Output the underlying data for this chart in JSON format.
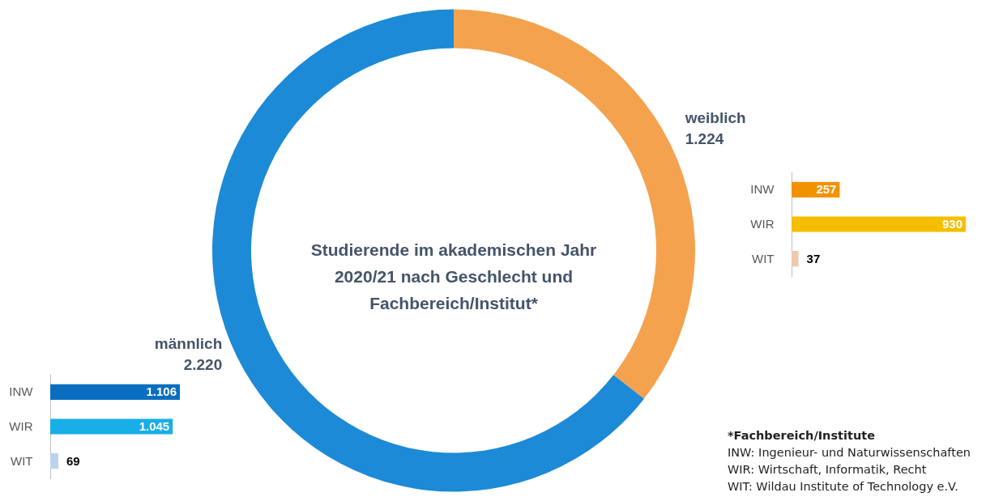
{
  "chart_data": [
    {
      "type": "donut",
      "title": "Studierende im akademischen Jahr 2020/21 nach Geschlecht und Fachbereich/Institut*",
      "categories": [
        "weiblich",
        "männlich"
      ],
      "values": [
        1224,
        2220
      ],
      "value_labels": [
        "1.224",
        "2.220"
      ],
      "colors": [
        "#f4a24e",
        "#1c8ad6"
      ],
      "annotations": [
        "*Fachbereich/Institute",
        "INW: Ingenieur- und Naturwissenschaften",
        "WIR: Wirtschaft, Informatik, Recht",
        "WIT: Wildau Institute of Technology e.V."
      ]
    },
    {
      "type": "bar",
      "orientation": "horizontal",
      "categories": [
        "INW",
        "WIR",
        "WIT"
      ],
      "values": [
        257,
        930,
        37
      ],
      "value_labels": [
        "257",
        "930",
        "37"
      ],
      "colors": [
        "#f39200",
        "#f6be00",
        "#efc9ad"
      ]
    },
    {
      "type": "bar",
      "orientation": "horizontal",
      "categories": [
        "INW",
        "WIR",
        "WIT"
      ],
      "values": [
        1106,
        1045,
        69
      ],
      "value_labels": [
        "1.106",
        "1.045",
        "69"
      ],
      "colors": [
        "#0a6ec0",
        "#18aee8",
        "#bcd3ec"
      ]
    }
  ]
}
